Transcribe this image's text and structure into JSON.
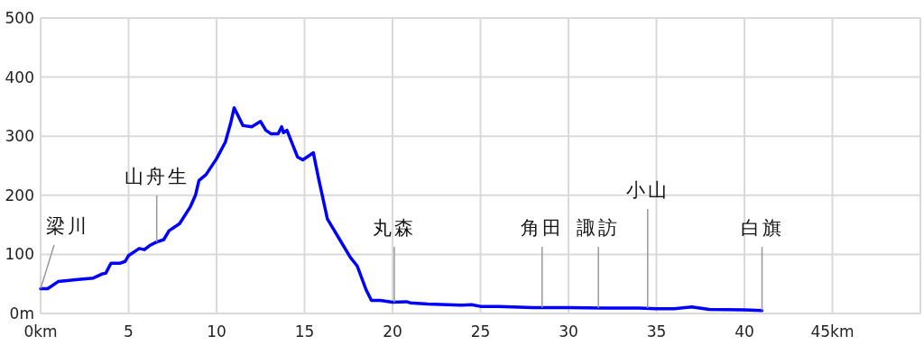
{
  "chart_data": {
    "type": "line",
    "x": [
      0,
      0.4,
      1,
      2,
      3,
      3.5,
      3.7,
      4,
      4.5,
      4.8,
      5,
      5.6,
      5.9,
      6.2,
      6.6,
      7,
      7.3,
      7.9,
      8.5,
      8.8,
      9,
      9.4,
      10,
      10.5,
      10.8,
      11,
      11.5,
      12,
      12.5,
      12.8,
      13.1,
      13.5,
      13.7,
      13.8,
      14,
      14.6,
      14.9,
      15.3,
      15.5,
      15.8,
      16.3,
      17,
      17.6,
      18,
      18.5,
      18.8,
      19.3,
      20,
      20.8,
      21,
      22,
      24,
      24.5,
      25,
      26,
      28,
      30,
      32,
      34,
      35,
      36,
      37,
      38,
      40,
      41
    ],
    "series": [
      {
        "color": "#0000ff",
        "values": [
          42,
          42,
          54,
          57,
          60,
          67,
          68,
          85,
          85,
          88,
          98,
          110,
          108,
          115,
          121,
          125,
          140,
          152,
          180,
          200,
          225,
          235,
          262,
          290,
          322,
          348,
          318,
          316,
          325,
          310,
          304,
          304,
          316,
          306,
          310,
          265,
          260,
          268,
          272,
          228,
          160,
          125,
          95,
          80,
          40,
          22,
          22,
          19,
          20,
          18,
          16,
          14,
          15,
          12,
          12,
          10,
          10,
          9,
          9,
          8,
          8,
          11,
          7,
          6,
          5
        ]
      }
    ],
    "xlim": [
      0,
      50
    ],
    "ylim": [
      0,
      500
    ],
    "xticks": [
      {
        "value": 0,
        "label": "0km"
      },
      5,
      10,
      15,
      20,
      25,
      30,
      35,
      40,
      {
        "value": 45,
        "label": "45km"
      }
    ],
    "yticks": [
      {
        "value": 0,
        "label": "0m"
      },
      100,
      200,
      300,
      400,
      500
    ],
    "grid": true,
    "marker": "none",
    "line_style": "solid",
    "annotations": [
      {
        "text": "梁川",
        "x": 0,
        "y": 42
      },
      {
        "text": "山舟生",
        "x": 6.6,
        "y": 121
      },
      {
        "text": "丸森",
        "x": 20.1,
        "y": 19
      },
      {
        "text": "角田",
        "x": 28.5,
        "y": 10
      },
      {
        "text": "諏訪",
        "x": 31.7,
        "y": 9
      },
      {
        "text": "小山",
        "x": 34.5,
        "y": 9
      },
      {
        "text": "白旗",
        "x": 41,
        "y": 5
      }
    ]
  }
}
